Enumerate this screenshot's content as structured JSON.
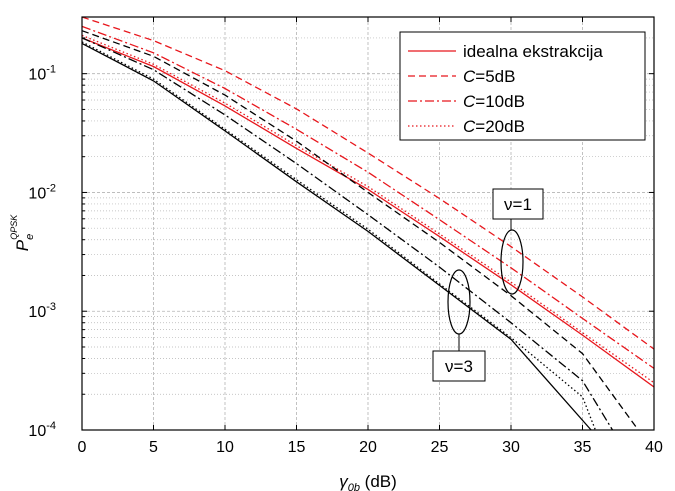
{
  "colors": {
    "red": "#e8161c",
    "black": "#000000",
    "grid": "#b4b4b4"
  },
  "chart_data": {
    "type": "line",
    "xlabel": {
      "symbol": "γ",
      "sub": "0b",
      "unit": " (dB)"
    },
    "ylabel": {
      "symbol": "P",
      "sub": "e",
      "sup": "QPSK"
    },
    "xlim": [
      0,
      40
    ],
    "ylim": [
      0.0001,
      0.3
    ],
    "yscale": "log",
    "grid": true,
    "xticks": [
      0,
      5,
      10,
      15,
      20,
      25,
      30,
      35,
      40
    ],
    "yticks": [
      {
        "value": 0.0001,
        "base": "10",
        "exp": "-4"
      },
      {
        "value": 0.001,
        "base": "10",
        "exp": "-3"
      },
      {
        "value": 0.01,
        "base": "10",
        "exp": "-2"
      },
      {
        "value": 0.1,
        "base": "10",
        "exp": "-1"
      }
    ],
    "legend": {
      "position": "top-right",
      "entries": [
        {
          "dash": "solid",
          "prefix": "",
          "italic": "",
          "rest": "idealna ekstrakcija"
        },
        {
          "dash": "dash",
          "prefix": "",
          "italic": "C",
          "rest": "=5dB"
        },
        {
          "dash": "dashdot",
          "prefix": "",
          "italic": "C",
          "rest": "=10dB"
        },
        {
          "dash": "dot",
          "prefix": "",
          "italic": "C",
          "rest": "=20dB"
        }
      ]
    },
    "annotations": [
      {
        "text": "ν=1",
        "x": 30.0,
        "y": 0.0026
      },
      {
        "text": "ν=3",
        "x": 26.5,
        "y": 0.0012
      }
    ],
    "series": [
      {
        "group": "ν=1",
        "style": "solid",
        "color": "red",
        "x": [
          0,
          5,
          10,
          15,
          20,
          25,
          30,
          35,
          40
        ],
        "y": [
          0.2,
          0.115,
          0.0535,
          0.0235,
          0.0106,
          0.00425,
          0.00167,
          0.00063,
          0.00023
        ]
      },
      {
        "group": "ν=1",
        "style": "dash",
        "color": "red",
        "x": [
          0,
          5,
          10,
          15,
          20,
          25,
          30,
          35,
          40
        ],
        "y": [
          0.3,
          0.19,
          0.106,
          0.0505,
          0.0215,
          0.0089,
          0.0035,
          0.00132,
          0.00048
        ]
      },
      {
        "group": "ν=1",
        "style": "dashdot",
        "color": "red",
        "x": [
          0,
          5,
          10,
          15,
          20,
          25,
          30,
          35,
          40
        ],
        "y": [
          0.25,
          0.15,
          0.075,
          0.034,
          0.0148,
          0.0059,
          0.00232,
          0.00087,
          0.00033
        ]
      },
      {
        "group": "ν=1",
        "style": "dot",
        "color": "red",
        "x": [
          0,
          5,
          10,
          15,
          20,
          25,
          30,
          35,
          40
        ],
        "y": [
          0.21,
          0.12,
          0.0565,
          0.0248,
          0.0112,
          0.00448,
          0.00176,
          0.00066,
          0.00025
        ]
      },
      {
        "group": "ν=3",
        "style": "solid",
        "color": "black",
        "x": [
          0,
          5,
          10,
          15,
          20,
          25,
          30,
          35.6
        ],
        "y": [
          0.18,
          0.087,
          0.033,
          0.0123,
          0.0047,
          0.00165,
          0.00058,
          0.0001
        ]
      },
      {
        "group": "ν=3",
        "style": "dash",
        "color": "black",
        "x": [
          0,
          5,
          10,
          15,
          20,
          25,
          30,
          35,
          38.9
        ],
        "y": [
          0.23,
          0.14,
          0.066,
          0.027,
          0.01,
          0.0038,
          0.00135,
          0.00044,
          0.0001
        ]
      },
      {
        "group": "ν=3",
        "style": "dashdot",
        "color": "black",
        "x": [
          0,
          5,
          10,
          15,
          20,
          25,
          30,
          35,
          37.1
        ],
        "y": [
          0.2,
          0.108,
          0.045,
          0.0175,
          0.0065,
          0.00235,
          0.0008,
          0.00026,
          0.0001
        ]
      },
      {
        "group": "ν=3",
        "style": "dot",
        "color": "black",
        "x": [
          0,
          5,
          10,
          15,
          20,
          25,
          30,
          35,
          35.9
        ],
        "y": [
          0.185,
          0.09,
          0.034,
          0.0128,
          0.0049,
          0.0017,
          0.0006,
          0.00019,
          0.0001
        ]
      }
    ]
  }
}
